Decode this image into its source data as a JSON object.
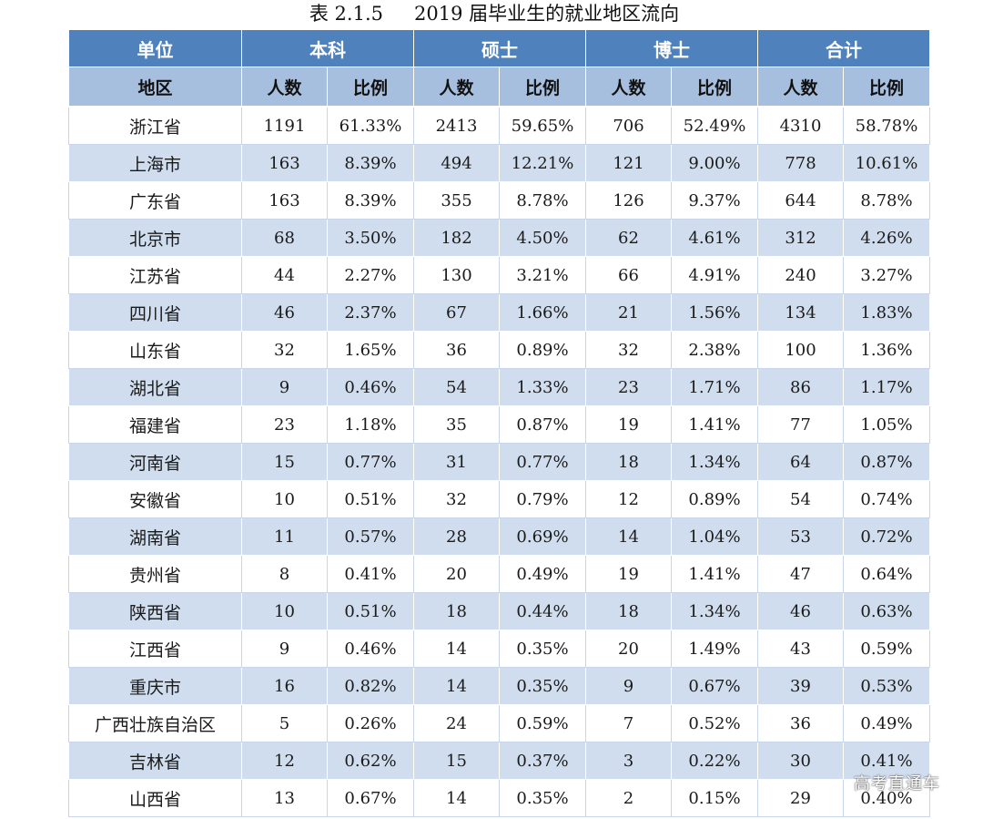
{
  "caption": {
    "number": "表 2.1.5",
    "title": "2019 届毕业生的就业地区流向"
  },
  "header": {
    "unit_label": "单位",
    "groups": [
      "本科",
      "硕士",
      "博士",
      "合计"
    ],
    "region_label": "地区",
    "count_label": "人数",
    "ratio_label": "比例"
  },
  "rows": [
    {
      "region": "浙江省",
      "values": [
        "1191",
        "61.33%",
        "2413",
        "59.65%",
        "706",
        "52.49%",
        "4310",
        "58.78%"
      ]
    },
    {
      "region": "上海市",
      "values": [
        "163",
        "8.39%",
        "494",
        "12.21%",
        "121",
        "9.00%",
        "778",
        "10.61%"
      ]
    },
    {
      "region": "广东省",
      "values": [
        "163",
        "8.39%",
        "355",
        "8.78%",
        "126",
        "9.37%",
        "644",
        "8.78%"
      ]
    },
    {
      "region": "北京市",
      "values": [
        "68",
        "3.50%",
        "182",
        "4.50%",
        "62",
        "4.61%",
        "312",
        "4.26%"
      ]
    },
    {
      "region": "江苏省",
      "values": [
        "44",
        "2.27%",
        "130",
        "3.21%",
        "66",
        "4.91%",
        "240",
        "3.27%"
      ]
    },
    {
      "region": "四川省",
      "values": [
        "46",
        "2.37%",
        "67",
        "1.66%",
        "21",
        "1.56%",
        "134",
        "1.83%"
      ]
    },
    {
      "region": "山东省",
      "values": [
        "32",
        "1.65%",
        "36",
        "0.89%",
        "32",
        "2.38%",
        "100",
        "1.36%"
      ]
    },
    {
      "region": "湖北省",
      "values": [
        "9",
        "0.46%",
        "54",
        "1.33%",
        "23",
        "1.71%",
        "86",
        "1.17%"
      ]
    },
    {
      "region": "福建省",
      "values": [
        "23",
        "1.18%",
        "35",
        "0.87%",
        "19",
        "1.41%",
        "77",
        "1.05%"
      ]
    },
    {
      "region": "河南省",
      "values": [
        "15",
        "0.77%",
        "31",
        "0.77%",
        "18",
        "1.34%",
        "64",
        "0.87%"
      ]
    },
    {
      "region": "安徽省",
      "values": [
        "10",
        "0.51%",
        "32",
        "0.79%",
        "12",
        "0.89%",
        "54",
        "0.74%"
      ]
    },
    {
      "region": "湖南省",
      "values": [
        "11",
        "0.57%",
        "28",
        "0.69%",
        "14",
        "1.04%",
        "53",
        "0.72%"
      ]
    },
    {
      "region": "贵州省",
      "values": [
        "8",
        "0.41%",
        "20",
        "0.49%",
        "19",
        "1.41%",
        "47",
        "0.64%"
      ]
    },
    {
      "region": "陕西省",
      "values": [
        "10",
        "0.51%",
        "18",
        "0.44%",
        "18",
        "1.34%",
        "46",
        "0.63%"
      ]
    },
    {
      "region": "江西省",
      "values": [
        "9",
        "0.46%",
        "14",
        "0.35%",
        "20",
        "1.49%",
        "43",
        "0.59%"
      ]
    },
    {
      "region": "重庆市",
      "values": [
        "16",
        "0.82%",
        "14",
        "0.35%",
        "9",
        "0.67%",
        "39",
        "0.53%"
      ]
    },
    {
      "region": "广西壮族自治区",
      "values": [
        "5",
        "0.26%",
        "24",
        "0.59%",
        "7",
        "0.52%",
        "36",
        "0.49%"
      ]
    },
    {
      "region": "吉林省",
      "values": [
        "12",
        "0.62%",
        "15",
        "0.37%",
        "3",
        "0.22%",
        "30",
        "0.41%"
      ]
    },
    {
      "region": "山西省",
      "values": [
        "13",
        "0.67%",
        "14",
        "0.35%",
        "2",
        "0.15%",
        "29",
        "0.40%"
      ]
    }
  ],
  "watermark": "高考直通车"
}
